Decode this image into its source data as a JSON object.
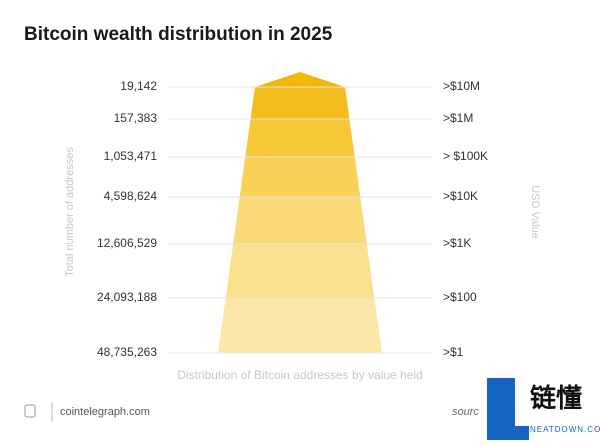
{
  "chart_data": {
    "type": "pyramid",
    "title": "Bitcoin wealth distribution in 2025",
    "y_label": "Total number of addresses",
    "y2_label": "USD Value",
    "x_label": "Distribution of Bitcoin addresses by value held",
    "categories": [
      ">$10M",
      ">$1M",
      "> $100K",
      ">$10K",
      ">$1K",
      ">$100",
      ">$1"
    ],
    "values": [
      19142,
      157383,
      1053471,
      4598624,
      12606529,
      24093188,
      48735263
    ],
    "value_labels": [
      "19,142",
      "157,383",
      "1,053,471",
      "4,598,624",
      "12,606,529",
      "24,093,188",
      "48,735,263"
    ],
    "colors": [
      "#f2b705",
      "#f4bc1c",
      "#f6c737",
      "#f8d157",
      "#f9da76",
      "#fae18e",
      "#fbe7a8"
    ]
  },
  "footer": {
    "source": "cointelegraph.com",
    "note": "sourc"
  },
  "watermark": {
    "brand": "链懂",
    "site": "NEATDOWN.COM"
  }
}
